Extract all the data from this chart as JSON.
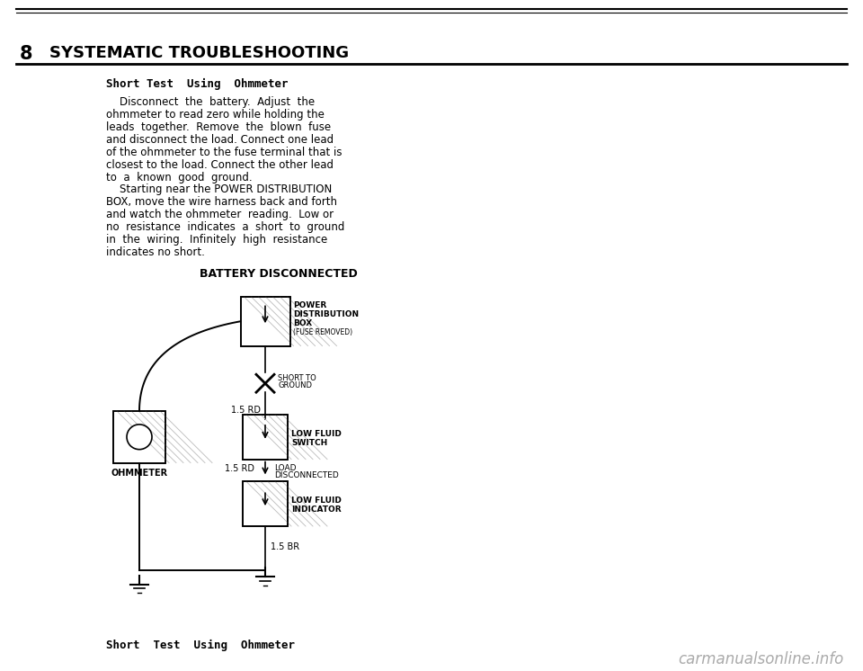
{
  "bg_color": "#ffffff",
  "header_number": "8",
  "header_title": "SYSTEMATIC TROUBLESHOOTING",
  "section_title": "Short Test  Using  Ohmmeter",
  "body_text_lines": [
    "    Disconnect  the  battery.  Adjust  the",
    "ohmmeter to read zero while holding the",
    "leads  together.  Remove  the  blown  fuse",
    "and disconnect the load. Connect one lead",
    "of the ohmmeter to the fuse terminal that is",
    "closest to the load. Connect the other lead",
    "to  a  known  good  ground.",
    "    Starting near the POWER DISTRIBUTION",
    "BOX, move the wire harness back and forth",
    "and watch the ohmmeter  reading.  Low or",
    "no  resistance  indicates  a  short  to  ground",
    "in  the  wiring.  Infinitely  high  resistance",
    "indicates no short."
  ],
  "diagram_title": "BATTERY DISCONNECTED",
  "footer_text": "Short  Test  Using  Ohmmeter",
  "watermark": "carmanualsonline.info",
  "line_color": "#000000",
  "text_color": "#000000",
  "gray_color": "#888888",
  "hatch_color": "#aaaaaa"
}
